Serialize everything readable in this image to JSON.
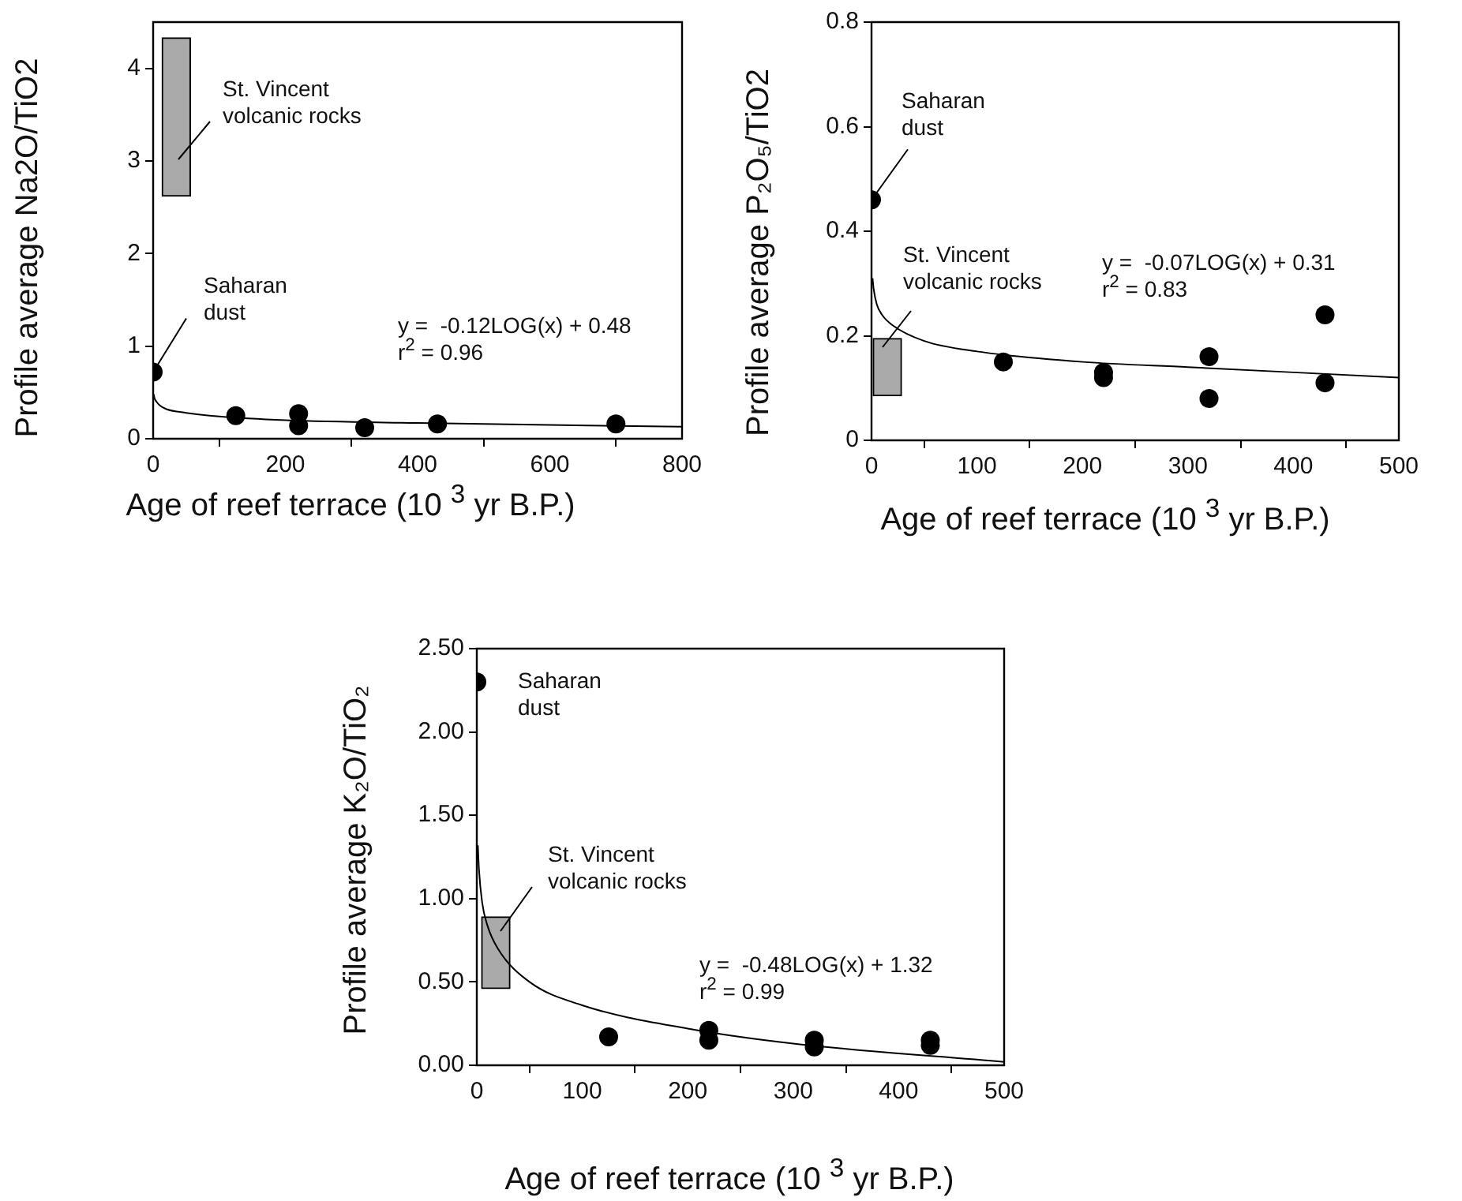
{
  "chart_data": [
    {
      "type": "scatter",
      "xlabel": "Age of reef terrace (10 $^{3}$ yr B.P.)",
      "ylabel": "Profile average Na2O/TiO2",
      "xlim": [
        0,
        800
      ],
      "xticks": [
        0,
        200,
        400,
        600,
        800
      ],
      "ylim": [
        0,
        4.5
      ],
      "yticks": [
        0,
        1,
        2,
        3,
        4
      ],
      "grid": false,
      "legend": false,
      "marker": "circle",
      "series": [
        {
          "color": "#000000",
          "x": [
            0,
            125,
            220,
            220,
            320,
            430,
            700
          ],
          "values": [
            0.72,
            0.25,
            0.27,
            0.14,
            0.12,
            0.16,
            0.16
          ]
        },
        {
          "type": "line",
          "marker": "none",
          "color": "#000000",
          "x": [
            1,
            2,
            5,
            10,
            20,
            50,
            100,
            200,
            400,
            800
          ],
          "values": [
            0.48,
            0.44,
            0.4,
            0.36,
            0.32,
            0.28,
            0.24,
            0.2,
            0.17,
            0.13
          ]
        },
        {
          "type": "bar",
          "color": "#aaaaaa",
          "x": [
            35
          ],
          "base": [
            2.62
          ],
          "values": [
            1.71
          ]
        }
      ],
      "annotations": [
        {
          "text": "Saharan\ndust",
          "x": 0,
          "y": 0.72
        },
        "St. Vincent\nvolcanic rocks",
        "y =  -0.12LOG(x) + 0.48\nr$^{2}$ = 0.96"
      ]
    },
    {
      "type": "scatter",
      "xlabel": "Age of reef terrace (10 $^{3}$ yr B.P.)",
      "ylabel": "Profile average P₂O₅/TiO2",
      "xlim": [
        0,
        500
      ],
      "xticks": [
        0,
        100,
        200,
        300,
        400,
        500
      ],
      "ylim": [
        0,
        0.8
      ],
      "yticks": [
        0,
        0.2,
        0.4,
        0.6,
        0.8
      ],
      "grid": false,
      "legend": false,
      "marker": "circle",
      "series": [
        {
          "color": "#000000",
          "x": [
            0,
            125,
            220,
            220,
            320,
            320,
            430,
            430
          ],
          "values": [
            0.46,
            0.15,
            0.13,
            0.12,
            0.16,
            0.08,
            0.24,
            0.11
          ]
        },
        {
          "type": "line",
          "marker": "none",
          "color": "#000000",
          "x": [
            1,
            2,
            5,
            10,
            20,
            50,
            100,
            200,
            300,
            500
          ],
          "values": [
            0.31,
            0.29,
            0.26,
            0.24,
            0.22,
            0.19,
            0.17,
            0.15,
            0.14,
            0.12
          ]
        },
        {
          "type": "bar",
          "color": "#aaaaaa",
          "x": [
            15
          ],
          "base": [
            0.085
          ],
          "values": [
            0.11
          ]
        }
      ],
      "annotations": [
        {
          "text": "Saharan\ndust",
          "x": 0,
          "y": 0.46
        },
        "St. Vincent\nvolcanic rocks",
        "y =  -0.07LOG(x) + 0.31\nr$^{2}$ = 0.83"
      ]
    },
    {
      "type": "scatter",
      "xlabel": "Age of reef terrace (10 $^{3}$ yr B.P.)",
      "ylabel": "Profile average K₂O/TiO₂",
      "xlim": [
        0,
        500
      ],
      "xticks": [
        0,
        100,
        200,
        300,
        400,
        500
      ],
      "ylim": [
        0,
        2.5
      ],
      "yticks": [
        {
          "value": 0,
          "label": "0.00"
        },
        {
          "value": 0.5,
          "label": "0.50"
        },
        {
          "value": 1,
          "label": "1.00"
        },
        {
          "value": 1.5,
          "label": "1.50"
        },
        {
          "value": 2,
          "label": "2.00"
        },
        {
          "value": 2.5,
          "label": "2.50"
        }
      ],
      "grid": false,
      "legend": false,
      "marker": "circle",
      "series": [
        {
          "color": "#000000",
          "x": [
            0,
            125,
            220,
            220,
            320,
            320,
            430,
            430
          ],
          "values": [
            2.3,
            0.17,
            0.21,
            0.15,
            0.15,
            0.11,
            0.15,
            0.12
          ]
        },
        {
          "type": "line",
          "marker": "none",
          "color": "#000000",
          "x": [
            1,
            2,
            5,
            10,
            20,
            50,
            100,
            200,
            300,
            500
          ],
          "values": [
            1.32,
            1.18,
            0.98,
            0.84,
            0.7,
            0.5,
            0.36,
            0.22,
            0.13,
            0.02
          ]
        },
        {
          "type": "bar",
          "color": "#aaaaaa",
          "x": [
            18
          ],
          "base": [
            0.46
          ],
          "values": [
            0.43
          ]
        }
      ],
      "annotations": [
        "Saharan\ndust",
        "St. Vincent\nvolcanic rocks",
        "y =  -0.48LOG(x) + 1.32\nr$^{2}$ = 0.99"
      ]
    }
  ]
}
